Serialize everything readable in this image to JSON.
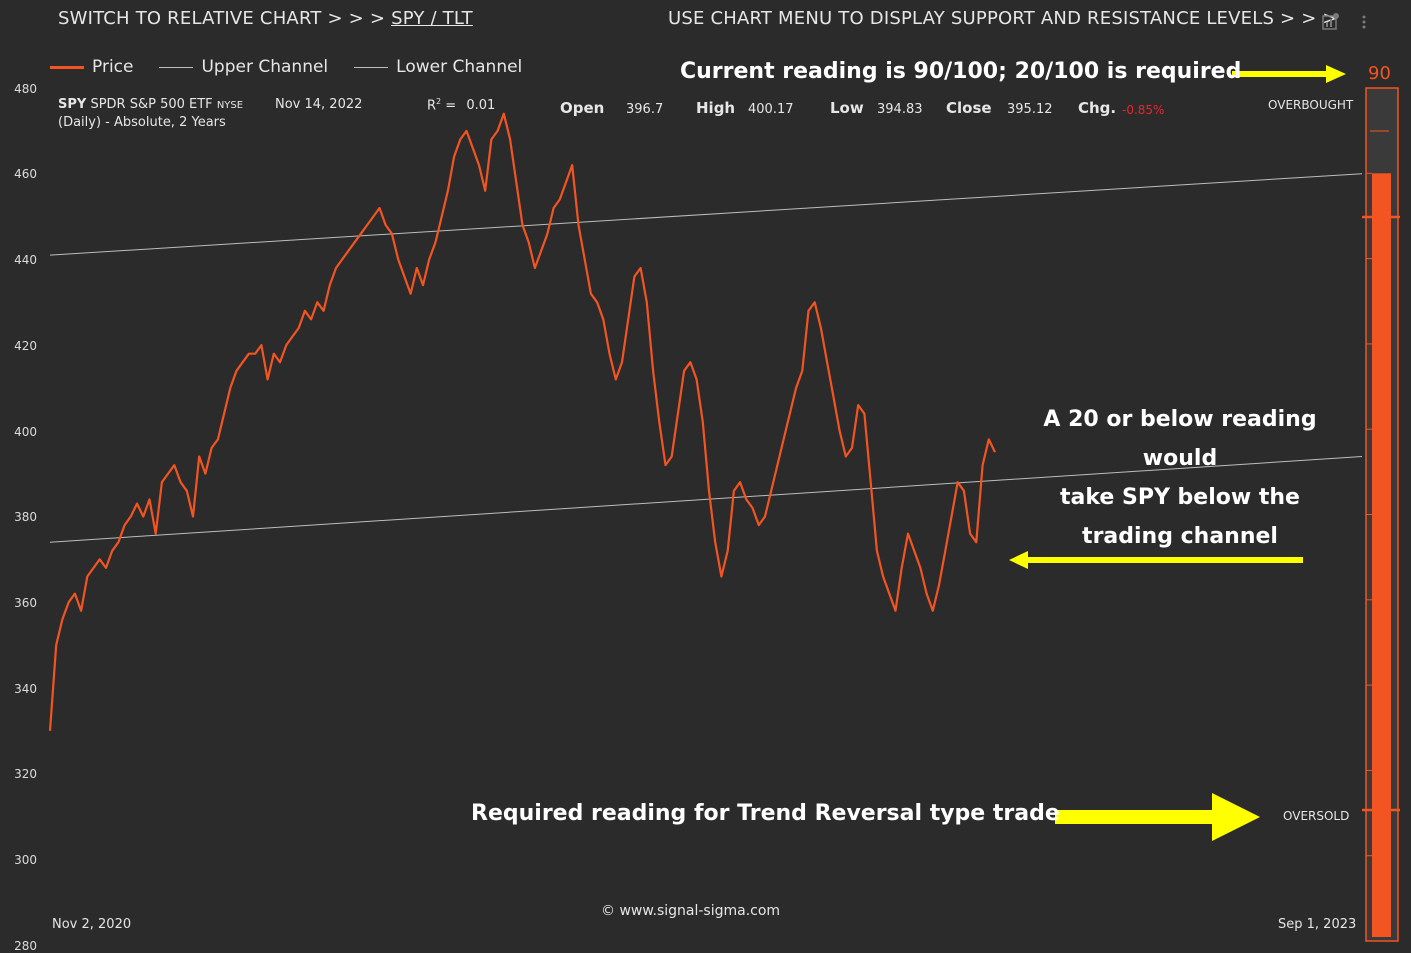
{
  "header": {
    "switch_prefix": "SWITCH TO RELATIVE CHART > > >",
    "switch_link": "SPY / TLT",
    "menu_hint": "USE CHART MENU TO DISPLAY SUPPORT AND RESISTANCE LEVELS > > >"
  },
  "legend": {
    "price": "Price",
    "upper": "Upper Channel",
    "lower": "Lower Channel"
  },
  "info": {
    "ticker": "SPY",
    "name": "SPDR S&P 500 ETF",
    "exchange": "NYSE",
    "date": "Nov 14, 2022",
    "r2_label": "R",
    "r2_sup": "2",
    "r2_eq": " =",
    "r2_value": "0.01",
    "period": "(Daily) - Absolute, 2 Years",
    "open_label": "Open",
    "open": "396.7",
    "high_label": "High",
    "high": "400.17",
    "low_label": "Low",
    "low": "394.83",
    "close_label": "Close",
    "close": "395.12",
    "chg_label": "Chg.",
    "chg": "-0.85%"
  },
  "annotations": {
    "current": "Current reading is 90/100; 20/100 is required",
    "channel_1": "A 20 or below reading",
    "channel_2": "would",
    "channel_3": "take SPY below the",
    "channel_4": "trading channel",
    "required": "Required reading for Trend Reversal type trade",
    "copyright": "© www.signal-sigma.com"
  },
  "gauge": {
    "value": 90,
    "value_label": "90",
    "overbought": "OVERBOUGHT",
    "oversold": "OVERSOLD"
  },
  "colors": {
    "background": "#2b2b2b",
    "price": "#f25522",
    "channel": "#bdbdbd",
    "arrow": "#ffff00",
    "negative": "#e8262b"
  },
  "chart_data": {
    "type": "line",
    "x_start_label": "Nov 2, 2020",
    "x_end_label": "Sep 1, 2023",
    "ylim": [
      280,
      480
    ],
    "yticks": [
      "480",
      "460",
      "440",
      "420",
      "400",
      "380",
      "360",
      "340",
      "320",
      "300",
      "280"
    ],
    "series": [
      {
        "name": "Price",
        "values": [
          330,
          350,
          356,
          360,
          362,
          358,
          366,
          368,
          370,
          368,
          372,
          374,
          378,
          380,
          383,
          380,
          384,
          376,
          388,
          390,
          392,
          388,
          386,
          380,
          394,
          390,
          396,
          398,
          404,
          410,
          414,
          416,
          418,
          418,
          420,
          412,
          418,
          416,
          420,
          422,
          424,
          428,
          426,
          430,
          428,
          434,
          438,
          440,
          442,
          444,
          446,
          448,
          450,
          452,
          448,
          446,
          440,
          436,
          432,
          438,
          434,
          440,
          444,
          450,
          456,
          464,
          468,
          470,
          466,
          462,
          456,
          468,
          470,
          474,
          468,
          458,
          448,
          444,
          438,
          442,
          446,
          452,
          454,
          458,
          462,
          448,
          440,
          432,
          430,
          426,
          418,
          412,
          416,
          426,
          436,
          438,
          430,
          414,
          402,
          392,
          394,
          404,
          414,
          416,
          412,
          402,
          386,
          374,
          366,
          372,
          386,
          388,
          384,
          382,
          378,
          380,
          386,
          392,
          398,
          404,
          410,
          414,
          428,
          430,
          424,
          416,
          408,
          400,
          394,
          396,
          406,
          404,
          388,
          372,
          366,
          362,
          358,
          368,
          376,
          372,
          368,
          362,
          358,
          364,
          372,
          380,
          388,
          386,
          376,
          374,
          392,
          398,
          395
        ]
      },
      {
        "name": "Upper Channel",
        "values": [
          441,
          460
        ]
      },
      {
        "name": "Lower Channel",
        "values": [
          374,
          394
        ]
      }
    ]
  }
}
